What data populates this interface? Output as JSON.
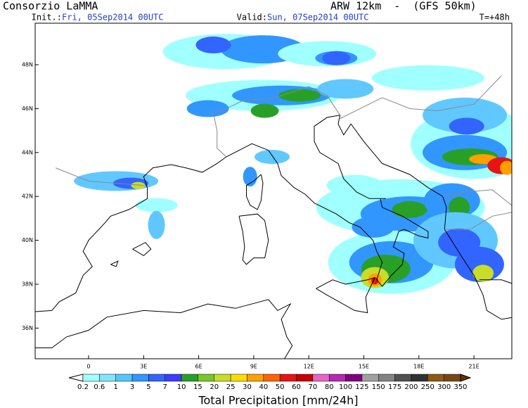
{
  "header": {
    "title": "Consorzio LaMMA",
    "model": "ARW 12km  -  (GFS 50km)",
    "init_label": "Init.:",
    "init": "Fri, 05Sep2014 00UTC",
    "valid_label": "Valid:",
    "valid": "Sun, 07Sep2014 00UTC",
    "lead": "T=+48h"
  },
  "lat_labels": [
    "48N",
    "46N",
    "44N",
    "42N",
    "40N",
    "38N",
    "36N"
  ],
  "lon_labels": [
    "0",
    "3E",
    "6E",
    "9E",
    "12E",
    "15E",
    "18E",
    "21E"
  ],
  "colorbar": {
    "labels": [
      "0.2",
      "0.6",
      "1",
      "3",
      "5",
      "7",
      "10",
      "15",
      "20",
      "25",
      "30",
      "40",
      "50",
      "60",
      "70",
      "80",
      "100",
      "125",
      "150",
      "175",
      "200",
      "250",
      "300",
      "350"
    ],
    "title": "Total Precipitation [mm/24h]"
  }
}
